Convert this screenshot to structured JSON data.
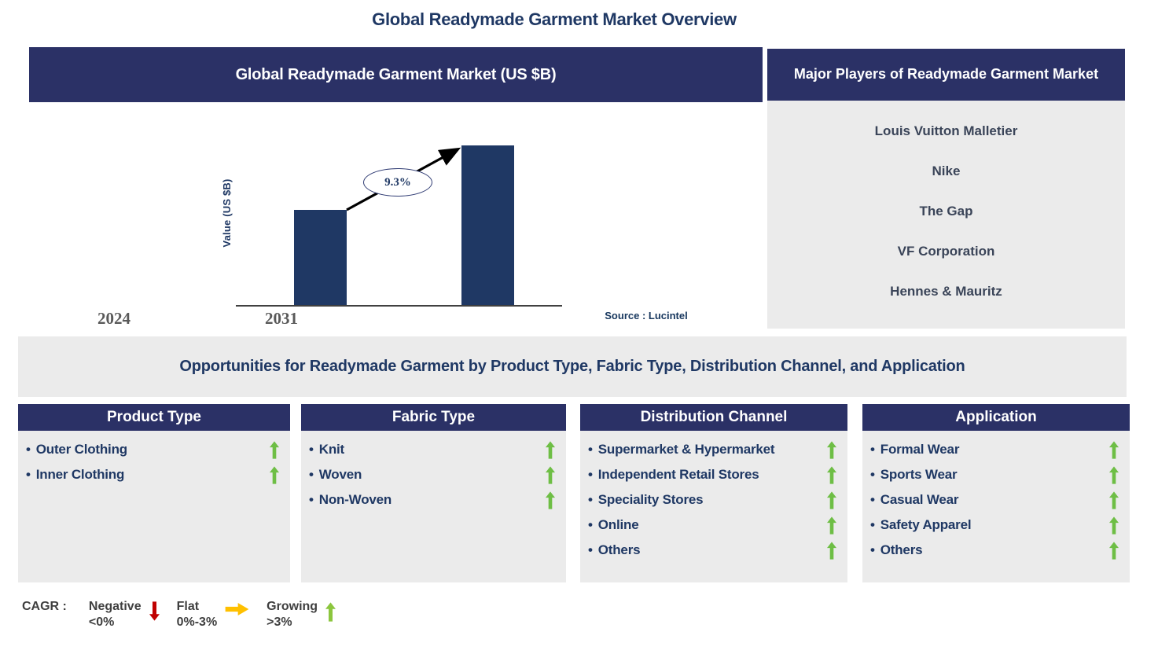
{
  "page": {
    "title": "Global Readymade Garment Market Overview"
  },
  "colors": {
    "navy_header": "#2B3166",
    "bar_fill": "#1F3864",
    "panel_gray": "#EBEBEB",
    "title_navy": "#1F3864",
    "players_text": "#3A4458",
    "tick_gray": "#595959",
    "axis_line": "#404040",
    "trend_up_green": "#6EBE45"
  },
  "market_chart": {
    "header": "Global Readymade Garment Market (US $B)",
    "source": "Source : Lucintel"
  },
  "chart_data": {
    "type": "bar",
    "title": "Global Readymade Garment Market (US $B)",
    "ylabel": "Value (US $B)",
    "xlabel": "",
    "categories": [
      "2024",
      "2031"
    ],
    "series": [
      {
        "name": "Market value (US $B, value axis unlabeled - relative bar heights)",
        "values": [
          100,
          168
        ]
      }
    ],
    "ylim": [
      0,
      180
    ],
    "grid": false,
    "legend_position": "none",
    "annotations": [
      {
        "text": "9.3%",
        "position": "ellipse on growth arrow between 2024 and 2031 bars"
      }
    ],
    "source": "Source : Lucintel"
  },
  "major_players": {
    "header": "Major Players of Readymade Garment Market",
    "players": [
      "Louis Vuitton Malletier",
      "Nike",
      "The Gap",
      "VF Corporation",
      "Hennes & Mauritz"
    ]
  },
  "opportunities": {
    "banner": "Opportunities for Readymade Garment by Product Type, Fabric Type, Distribution Channel, and Application",
    "bullet": "•",
    "columns": [
      {
        "title": "Product Type",
        "items": [
          {
            "label": "Outer Clothing",
            "trend": "up"
          },
          {
            "label": "Inner Clothing",
            "trend": "up"
          }
        ]
      },
      {
        "title": "Fabric Type",
        "items": [
          {
            "label": "Knit",
            "trend": "up"
          },
          {
            "label": "Woven",
            "trend": "up"
          },
          {
            "label": "Non-Woven",
            "trend": "up"
          }
        ]
      },
      {
        "title": "Distribution Channel",
        "items": [
          {
            "label": "Supermarket & Hypermarket",
            "trend": "up"
          },
          {
            "label": "Independent Retail Stores",
            "trend": "up"
          },
          {
            "label": "Speciality Stores",
            "trend": "up"
          },
          {
            "label": "Online",
            "trend": "up"
          },
          {
            "label": "Others",
            "trend": "up"
          }
        ]
      },
      {
        "title": "Application",
        "items": [
          {
            "label": "Formal Wear",
            "trend": "up"
          },
          {
            "label": "Sports Wear",
            "trend": "up"
          },
          {
            "label": "Casual Wear",
            "trend": "up"
          },
          {
            "label": "Safety Apparel",
            "trend": "up"
          },
          {
            "label": "Others",
            "trend": "up"
          }
        ]
      }
    ]
  },
  "cagr_legend": {
    "label": "CAGR :",
    "entries": [
      {
        "name": "Negative",
        "range": "<0%",
        "direction": "down",
        "color": "#C00000"
      },
      {
        "name": "Flat",
        "range": "0%-3%",
        "direction": "right",
        "color": "#FFC000"
      },
      {
        "name": "Growing",
        "range": ">3%",
        "direction": "up",
        "color": "#8CC63E"
      }
    ]
  }
}
